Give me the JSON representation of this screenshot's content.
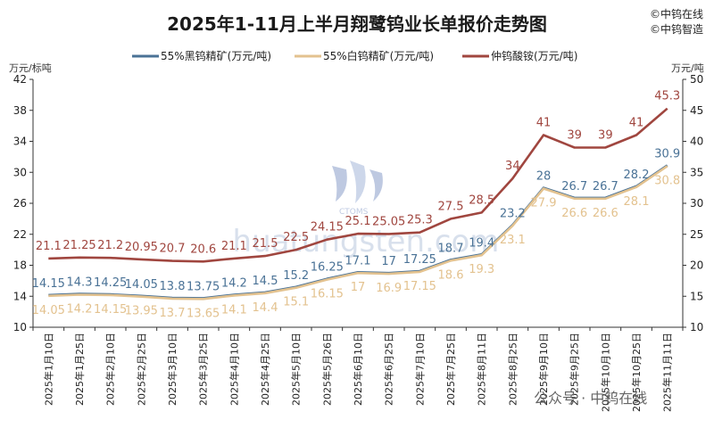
{
  "page": {
    "title": "2025年1-11月上半月翔鹭钨业长单报价走势图",
    "brand_lines": [
      "©中钨在线",
      "©中钨智造"
    ],
    "watermark": "huatungsten.com",
    "watermark_logo_text": "CTOMS",
    "footer": "公众号 · 中钨在线"
  },
  "chart_data": {
    "type": "line",
    "title": "2025年1-11月上半月翔鹭钨业长单报价走势图",
    "categories": [
      "2025年1月10日",
      "2025年1月25日",
      "2025年2月10日",
      "2025年2月25日",
      "2025年3月10日",
      "2025年3月25日",
      "2025年4月10日",
      "2025年4月25日",
      "2025年5月10日",
      "2025年5月26日",
      "2025年6月10日",
      "2025年6月25日",
      "2025年7月10日",
      "2025年7月25日",
      "2025年8月11日",
      "2025年8月25日",
      "2025年9月10日",
      "2025年9月25日",
      "2025年10月10日",
      "2025年10月25日",
      "2025年11月11日"
    ],
    "left_axis": {
      "unit": "万元/标吨",
      "ylim": [
        10,
        42
      ],
      "ticks": [
        10,
        14,
        18,
        22,
        26,
        30,
        34,
        38,
        42
      ]
    },
    "right_axis": {
      "unit": "万元/吨",
      "ylim": [
        10,
        50
      ],
      "ticks": [
        10,
        15,
        20,
        25,
        30,
        35,
        40,
        45,
        50
      ]
    },
    "legend_position": "top",
    "grid": false,
    "series": [
      {
        "name": "55%黑钨精矿(万元/吨)",
        "color": "#4a7296",
        "axis": "left",
        "values": [
          14.15,
          14.3,
          14.25,
          14.05,
          13.8,
          13.75,
          14.2,
          14.5,
          15.2,
          16.25,
          17.1,
          17,
          17.25,
          18.7,
          19.4,
          23.2,
          28,
          26.7,
          26.7,
          28.2,
          30.9
        ],
        "labels": [
          "14.15",
          "14.3",
          "14.25",
          "14.05",
          "13.8",
          "13.75",
          "14.2",
          "14.5",
          "15.2",
          "16.25",
          "17.1",
          "17",
          "17.25",
          "18.7",
          "19.4",
          "23.2",
          "28",
          "26.7",
          "26.7",
          "28.2",
          "30.9"
        ]
      },
      {
        "name": "55%白钨精矿(万元/吨)",
        "color": "#e3c28f",
        "axis": "left",
        "values": [
          14.05,
          14.2,
          14.15,
          13.95,
          13.7,
          13.65,
          14.1,
          14.4,
          15.1,
          16.15,
          17,
          16.9,
          17.15,
          18.6,
          19.3,
          23.1,
          27.9,
          26.6,
          26.6,
          28.1,
          30.8
        ],
        "labels": [
          "14.05",
          "14.2",
          "14.15",
          "13.95",
          "13.7",
          "13.65",
          "14.1",
          "14.4",
          "15.1",
          "16.15",
          "17",
          "16.9",
          "17.15",
          "18.6",
          "19.3",
          "23.1",
          "27.9",
          "26.6",
          "26.6",
          "28.1",
          "30.8"
        ]
      },
      {
        "name": "仲钨酸铵(万元/吨)",
        "color": "#a0463f",
        "axis": "right",
        "values": [
          21.1,
          21.25,
          21.2,
          20.95,
          20.7,
          20.6,
          21.1,
          21.5,
          22.5,
          24.15,
          25.1,
          25.05,
          25.3,
          27.5,
          28.5,
          34,
          41,
          39,
          39,
          41,
          45.3
        ],
        "labels": [
          "21.1",
          "21.25",
          "21.2",
          "20.95",
          "20.7",
          "20.6",
          "21.1",
          "21.5",
          "22.5",
          "24.15",
          "25.1",
          "25.05",
          "25.3",
          "27.5",
          "28.5",
          "34",
          "41",
          "39",
          "39",
          "41",
          "45.3"
        ]
      }
    ]
  }
}
